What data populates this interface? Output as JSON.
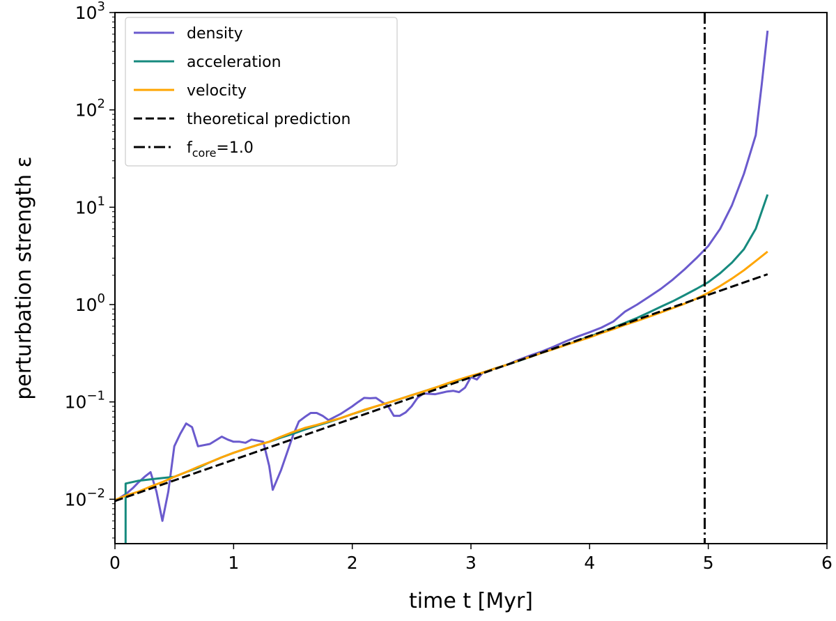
{
  "chart_data": {
    "type": "line",
    "title": "",
    "xlabel": "time t [Myr]",
    "ylabel": "perturbation strength ε",
    "yscale": "log",
    "xlim": [
      0,
      6
    ],
    "ylim": [
      0.0035,
      1000
    ],
    "xticks": [
      "0",
      "1",
      "2",
      "3",
      "4",
      "5",
      "6"
    ],
    "yticks": [
      {
        "base": "10",
        "exp": "−2",
        "value": 0.01
      },
      {
        "base": "10",
        "exp": "−1",
        "value": 0.1
      },
      {
        "base": "10",
        "exp": "0",
        "value": 1
      },
      {
        "base": "10",
        "exp": "1",
        "value": 10
      },
      {
        "base": "10",
        "exp": "2",
        "value": 100
      },
      {
        "base": "10",
        "exp": "3",
        "value": 1000
      }
    ],
    "grid": false,
    "legend_position": "top-left",
    "series": [
      {
        "name": "density",
        "color": "#6a5acd",
        "style": "solid",
        "x": [
          0.0,
          0.05,
          0.1,
          0.15,
          0.2,
          0.25,
          0.3,
          0.35,
          0.4,
          0.45,
          0.5,
          0.55,
          0.6,
          0.65,
          0.7,
          0.8,
          0.9,
          0.95,
          1.0,
          1.05,
          1.1,
          1.15,
          1.2,
          1.25,
          1.3,
          1.33,
          1.4,
          1.5,
          1.55,
          1.6,
          1.65,
          1.7,
          1.75,
          1.8,
          1.9,
          2.0,
          2.05,
          2.1,
          2.15,
          2.2,
          2.25,
          2.3,
          2.35,
          2.4,
          2.45,
          2.5,
          2.55,
          2.6,
          2.7,
          2.8,
          2.85,
          2.9,
          2.95,
          3.0,
          3.05,
          3.1,
          3.2,
          3.3,
          3.4,
          3.5,
          3.6,
          3.7,
          3.8,
          3.9,
          4.0,
          4.1,
          4.2,
          4.3,
          4.4,
          4.5,
          4.6,
          4.7,
          4.8,
          4.9,
          5.0,
          5.1,
          5.2,
          5.3,
          5.4,
          5.45,
          5.5
        ],
        "values": [
          0.0095,
          0.0105,
          0.0115,
          0.013,
          0.015,
          0.017,
          0.019,
          0.012,
          0.006,
          0.012,
          0.035,
          0.047,
          0.06,
          0.055,
          0.035,
          0.037,
          0.044,
          0.041,
          0.039,
          0.039,
          0.038,
          0.041,
          0.04,
          0.039,
          0.022,
          0.0125,
          0.02,
          0.045,
          0.063,
          0.07,
          0.077,
          0.077,
          0.072,
          0.065,
          0.075,
          0.09,
          0.1,
          0.11,
          0.109,
          0.11,
          0.1,
          0.091,
          0.072,
          0.072,
          0.078,
          0.09,
          0.11,
          0.122,
          0.12,
          0.128,
          0.13,
          0.126,
          0.14,
          0.18,
          0.17,
          0.2,
          0.22,
          0.24,
          0.27,
          0.3,
          0.33,
          0.37,
          0.42,
          0.47,
          0.52,
          0.58,
          0.67,
          0.85,
          1.0,
          1.2,
          1.45,
          1.8,
          2.3,
          3.0,
          4.0,
          6.0,
          10.5,
          22,
          55,
          180,
          650
        ]
      },
      {
        "name": "acceleration",
        "color": "#168a7e",
        "style": "solid",
        "x": [
          0.09,
          0.09,
          0.2,
          0.3,
          0.4,
          0.5,
          0.6,
          0.7,
          0.8,
          0.9,
          1.0,
          1.1,
          1.2,
          1.3,
          1.4,
          1.5,
          1.6,
          1.7,
          1.8,
          1.9,
          2.0,
          2.1,
          2.2,
          2.3,
          2.4,
          2.5,
          2.6,
          2.7,
          2.8,
          2.9,
          3.0,
          3.1,
          3.2,
          3.3,
          3.4,
          3.5,
          3.6,
          3.7,
          3.8,
          3.9,
          4.0,
          4.1,
          4.2,
          4.3,
          4.4,
          4.5,
          4.6,
          4.7,
          4.8,
          4.9,
          5.0,
          5.1,
          5.2,
          5.3,
          5.4,
          5.5
        ],
        "values": [
          0.003,
          0.0145,
          0.0155,
          0.016,
          0.0165,
          0.017,
          0.019,
          0.021,
          0.024,
          0.027,
          0.03,
          0.033,
          0.036,
          0.039,
          0.043,
          0.047,
          0.052,
          0.057,
          0.062,
          0.068,
          0.075,
          0.082,
          0.09,
          0.098,
          0.107,
          0.117,
          0.128,
          0.14,
          0.153,
          0.167,
          0.183,
          0.2,
          0.22,
          0.24,
          0.263,
          0.29,
          0.32,
          0.35,
          0.385,
          0.425,
          0.47,
          0.52,
          0.58,
          0.65,
          0.73,
          0.83,
          0.95,
          1.08,
          1.25,
          1.45,
          1.7,
          2.1,
          2.7,
          3.7,
          6.0,
          13.5
        ]
      },
      {
        "name": "velocity",
        "color": "#ffa500",
        "style": "solid",
        "x": [
          0.0,
          0.1,
          0.2,
          0.3,
          0.4,
          0.5,
          0.6,
          0.7,
          0.8,
          0.9,
          1.0,
          1.1,
          1.2,
          1.3,
          1.4,
          1.5,
          1.6,
          1.7,
          1.8,
          1.9,
          2.0,
          2.1,
          2.2,
          2.3,
          2.4,
          2.5,
          2.6,
          2.7,
          2.8,
          2.9,
          3.0,
          3.1,
          3.2,
          3.3,
          3.4,
          3.5,
          3.6,
          3.7,
          3.8,
          3.9,
          4.0,
          4.1,
          4.2,
          4.3,
          4.4,
          4.5,
          4.6,
          4.7,
          4.8,
          4.9,
          5.0,
          5.1,
          5.2,
          5.3,
          5.4,
          5.5
        ],
        "values": [
          0.0098,
          0.011,
          0.012,
          0.0135,
          0.015,
          0.017,
          0.019,
          0.0215,
          0.024,
          0.027,
          0.03,
          0.033,
          0.036,
          0.039,
          0.044,
          0.049,
          0.054,
          0.058,
          0.063,
          0.068,
          0.075,
          0.083,
          0.09,
          0.098,
          0.107,
          0.117,
          0.128,
          0.14,
          0.155,
          0.17,
          0.185,
          0.2,
          0.22,
          0.24,
          0.265,
          0.29,
          0.32,
          0.35,
          0.385,
          0.42,
          0.46,
          0.51,
          0.56,
          0.62,
          0.68,
          0.75,
          0.83,
          0.92,
          1.02,
          1.15,
          1.32,
          1.55,
          1.85,
          2.25,
          2.8,
          3.5
        ]
      },
      {
        "name": "theoretical prediction",
        "color": "#000000",
        "style": "dashed",
        "x": [
          0.0,
          5.5
        ],
        "values": [
          0.0096,
          2.05
        ]
      },
      {
        "name": "f_core=1.0",
        "legend_main": "f",
        "legend_sub": "core",
        "legend_rest": "=1.0",
        "color": "#000000",
        "style": "dashdot",
        "orientation": "vertical",
        "x_value": 4.97
      }
    ]
  }
}
